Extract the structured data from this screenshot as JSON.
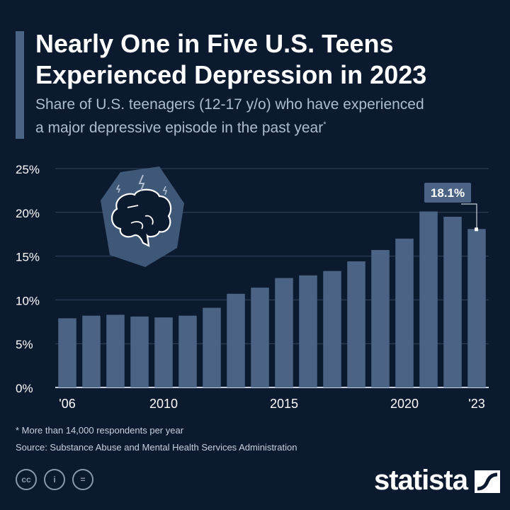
{
  "header": {
    "title_line1": "Nearly One in Five U.S. Teens",
    "title_line2": "Experienced Depression in 2023",
    "subtitle_line1": "Share of U.S. teenagers (12-17 y/o) who have experienced",
    "subtitle_line2": "a major depressive episode in the past year",
    "subtitle_mark": "*"
  },
  "chart_data": {
    "type": "bar",
    "categories": [
      "2006",
      "2007",
      "2008",
      "2009",
      "2010",
      "2011",
      "2012",
      "2013",
      "2014",
      "2015",
      "2016",
      "2017",
      "2018",
      "2019",
      "2020",
      "2021",
      "2022",
      "2023"
    ],
    "values": [
      7.9,
      8.2,
      8.3,
      8.1,
      8.0,
      8.2,
      9.1,
      10.7,
      11.4,
      12.5,
      12.8,
      13.3,
      14.4,
      15.7,
      17.0,
      20.1,
      19.5,
      18.1
    ],
    "ylim": [
      0,
      25
    ],
    "y_ticks": [
      "0%",
      "5%",
      "10%",
      "15%",
      "20%",
      "25%"
    ],
    "x_tick_labels": [
      {
        "index": 0,
        "label": "'06"
      },
      {
        "index": 4,
        "label": "2010"
      },
      {
        "index": 9,
        "label": "2015"
      },
      {
        "index": 14,
        "label": "2020"
      },
      {
        "index": 17,
        "label": "'23"
      }
    ],
    "annotation": {
      "index": 17,
      "label": "18.1%"
    },
    "grid": true,
    "bar_color": "#4b6485",
    "icon": "brain-icon"
  },
  "footer": {
    "footnote": "* More than 14,000 respondents per year",
    "source": "Source: Substance Abuse and Mental Health Services Administration",
    "license_icons": [
      "cc-icon",
      "attribution-icon",
      "no-derivatives-icon"
    ],
    "license_labels": [
      "cc",
      "i",
      "="
    ],
    "logo": "statista"
  },
  "colors": {
    "background": "#0c1a2f",
    "accent": "#4b6485",
    "text": "#ffffff",
    "subtext": "#aebbd0"
  }
}
